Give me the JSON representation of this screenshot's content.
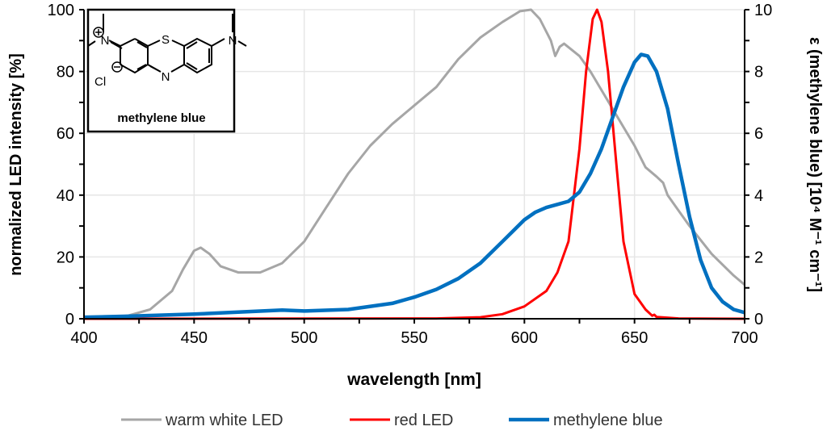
{
  "chart_data": {
    "type": "line",
    "xlabel": "wavelength [nm]",
    "ylabel": "normalized LED intensity [%]",
    "y2label": "ε (methylene blue) [10⁴ M⁻¹ cm⁻¹]",
    "xlim": [
      400,
      700
    ],
    "ylim": [
      0,
      100
    ],
    "y2lim": [
      0,
      10
    ],
    "xticks": [
      400,
      450,
      500,
      550,
      600,
      650,
      700
    ],
    "yticks": [
      0,
      20,
      40,
      60,
      80,
      100
    ],
    "y2ticks": [
      0,
      2,
      4,
      6,
      8,
      10
    ],
    "grid": true,
    "legend_position": "bottom",
    "inset_label": "methylene blue",
    "inset_atoms": {
      "s": "S",
      "n": "N",
      "cl": "Cl"
    },
    "series": [
      {
        "name": "warm white LED",
        "axis": "left",
        "color": "#a6a6a6",
        "x": [
          400,
          420,
          430,
          440,
          445,
          450,
          453,
          457,
          462,
          470,
          480,
          490,
          500,
          510,
          520,
          530,
          540,
          550,
          560,
          570,
          580,
          590,
          598,
          603,
          607,
          612,
          614,
          616,
          618,
          625,
          630,
          640,
          650,
          655,
          660,
          663,
          665,
          675,
          685,
          695,
          700
        ],
        "y": [
          0,
          1,
          3,
          9,
          16,
          22,
          23,
          21,
          17,
          15,
          15,
          18,
          25,
          36,
          47,
          56,
          63,
          69,
          75,
          84,
          91,
          96,
          99.5,
          100,
          97,
          90,
          85,
          88,
          89,
          85,
          80,
          68,
          56,
          49,
          46,
          44,
          40,
          30,
          21,
          14,
          11
        ]
      },
      {
        "name": "red LED",
        "axis": "left",
        "color": "#ff0000",
        "x": [
          400,
          560,
          580,
          590,
          600,
          610,
          615,
          620,
          625,
          628,
          631,
          633,
          635,
          638,
          642,
          645,
          650,
          655,
          658,
          659,
          660,
          670,
          700
        ],
        "y": [
          0,
          0.1,
          0.5,
          1.5,
          4,
          9,
          15,
          25,
          55,
          80,
          97,
          100,
          96,
          80,
          48,
          25,
          8,
          3,
          1,
          1.3,
          0.6,
          0.1,
          0
        ]
      },
      {
        "name": "methylene blue",
        "axis": "right",
        "color": "#0070c0",
        "x": [
          400,
          420,
          450,
          490,
          500,
          520,
          540,
          550,
          560,
          570,
          580,
          590,
          600,
          605,
          610,
          615,
          620,
          625,
          630,
          635,
          640,
          645,
          650,
          653,
          656,
          660,
          665,
          670,
          675,
          680,
          685,
          690,
          695,
          700
        ],
        "y": [
          0.05,
          0.08,
          0.15,
          0.28,
          0.25,
          0.3,
          0.5,
          0.7,
          0.95,
          1.3,
          1.8,
          2.5,
          3.2,
          3.45,
          3.6,
          3.7,
          3.8,
          4.1,
          4.7,
          5.5,
          6.5,
          7.5,
          8.3,
          8.55,
          8.5,
          8.0,
          6.8,
          5.0,
          3.3,
          1.9,
          1.0,
          0.55,
          0.3,
          0.2
        ]
      }
    ]
  }
}
